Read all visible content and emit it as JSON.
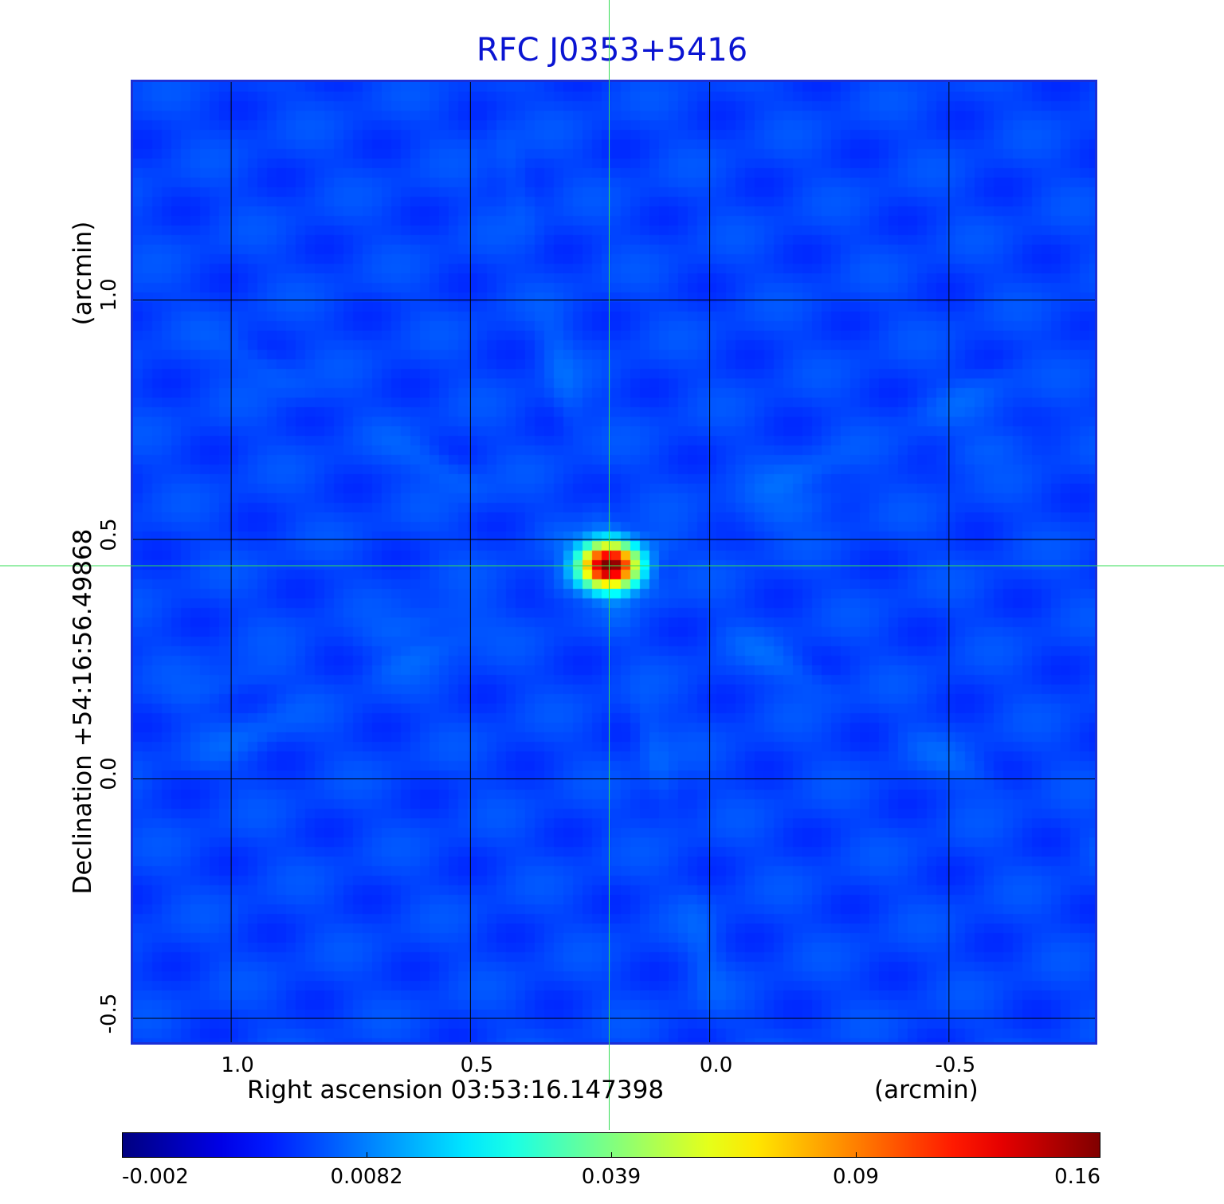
{
  "chart_data": {
    "type": "heatmap",
    "title": "RFC J0353+5416",
    "xlabel": "Right ascension  03:53:16.147398",
    "xunit": "(arcmin)",
    "ylabel": "Declination  +54:16:56.49868",
    "yunit": "(arcmin)",
    "x_axis_reversed": true,
    "xlim": [
      1.21,
      -0.81
    ],
    "ylim": [
      -0.555,
      1.46
    ],
    "x_ticks": [
      1.0,
      0.5,
      0.0,
      -0.5
    ],
    "x_tick_labels": [
      "1.0",
      "0.5",
      "0.0",
      "-0.5"
    ],
    "y_ticks": [
      1.0,
      0.5,
      0.0,
      -0.5
    ],
    "y_tick_labels": [
      "1.0",
      "0.5",
      "0.0",
      "-0.5"
    ],
    "grid": true,
    "grid_color": "#000000",
    "crosshair": {
      "x": 0.21,
      "y": 0.445,
      "color": "#33dd55"
    },
    "source_peak": {
      "x": 0.21,
      "y": 0.445,
      "value": 0.16
    },
    "background_level": 0.0,
    "colorbar": {
      "colormap": "jet",
      "tick_labels": [
        "-0.002",
        "0.0082",
        "0.039",
        "0.09",
        "0.16"
      ],
      "min": -0.002,
      "max": 0.16
    },
    "frame_color": "#1b2ed6",
    "title_color": "#0a14d2"
  }
}
